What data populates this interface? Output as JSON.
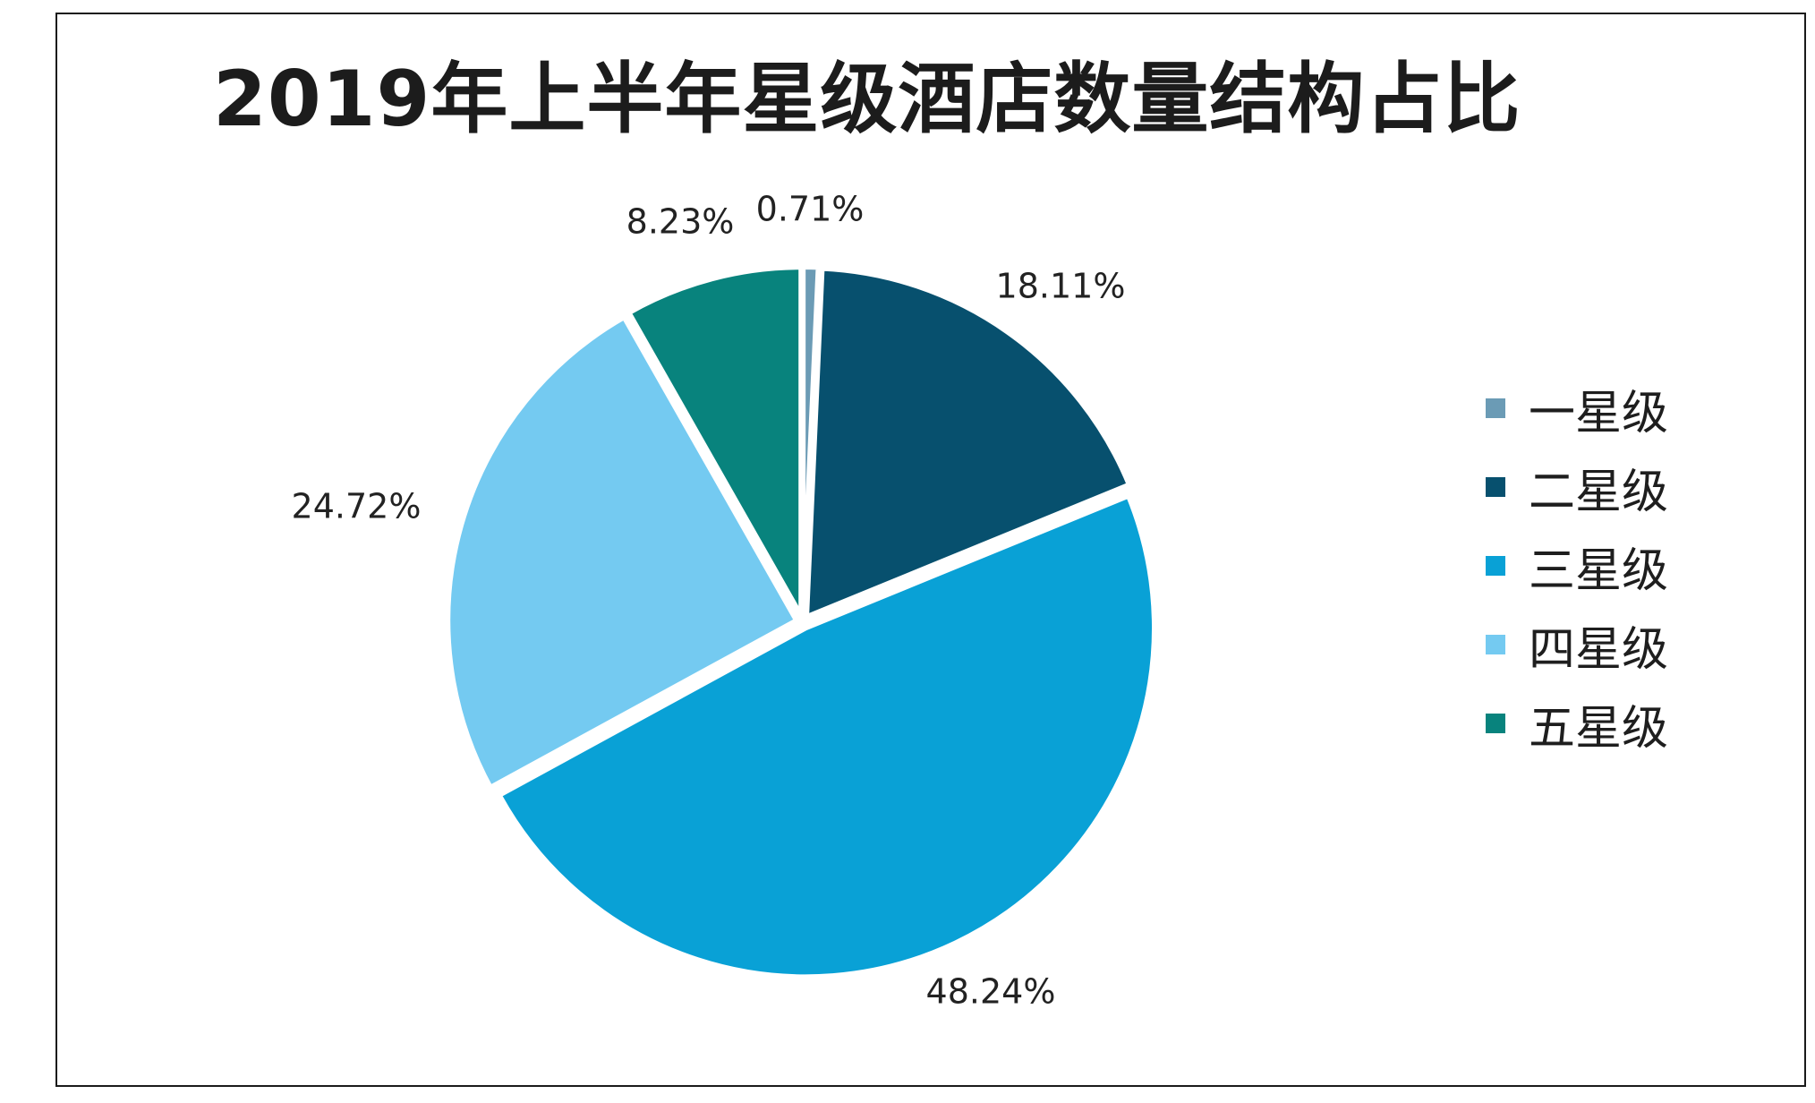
{
  "chart_data": {
    "type": "pie",
    "title": "2019年上半年星级酒店数量结构占比",
    "categories": [
      "一星级",
      "二星级",
      "三星级",
      "四星级",
      "五星级"
    ],
    "values": [
      0.71,
      18.11,
      48.24,
      24.72,
      8.23
    ],
    "value_labels": [
      "0.71%",
      "18.11%",
      "48.24%",
      "24.72%",
      "8.23%"
    ],
    "unit": "%",
    "colors": [
      "#6b9bb5",
      "#07506e",
      "#09a1d6",
      "#74caf1",
      "#08837d"
    ],
    "start_angle": "12 o'clock",
    "direction": "clockwise",
    "legend_position": "right"
  }
}
